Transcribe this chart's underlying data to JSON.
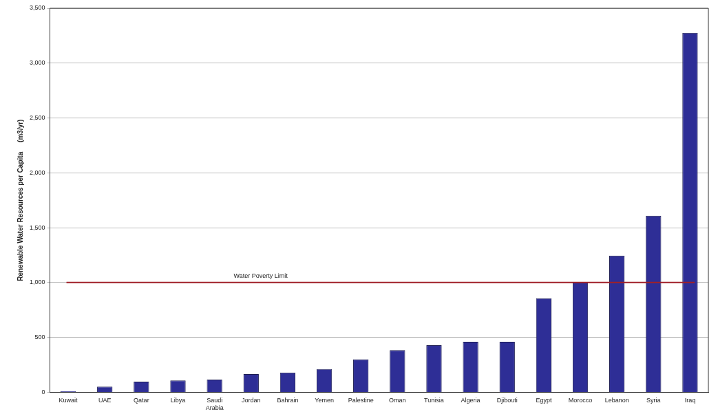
{
  "chart_data": {
    "type": "bar",
    "ylabel": "Renewable Water Resources per Capita     (m3/yr)",
    "categories": [
      "Kuwait",
      "UAE",
      "Qatar",
      "Libya",
      "Saudi Arabia",
      "Jordan",
      "Bahrain",
      "Yemen",
      "Palestine",
      "Oman",
      "Tunisia",
      "Algeria",
      "Djibouti",
      "Egypt",
      "Morocco",
      "Lebanon",
      "Syria",
      "Iraq"
    ],
    "values": [
      10,
      51,
      96,
      108,
      115,
      166,
      179,
      211,
      300,
      383,
      428,
      460,
      460,
      856,
      1000,
      1245,
      1609,
      3276
    ],
    "color": "#2e2e96",
    "ylim": [
      0,
      3500
    ],
    "yticks": [
      0,
      {
        "value": 500,
        "label": "500"
      },
      {
        "value": 1000,
        "label": "1,000"
      },
      {
        "value": 1500,
        "label": "1,500"
      },
      {
        "value": 2000,
        "label": "2,000"
      },
      {
        "value": 2500,
        "label": "2,500"
      },
      {
        "value": 3000,
        "label": "3,000"
      },
      {
        "value": 3500,
        "label": "3,500"
      }
    ],
    "grid": "y",
    "ref_lines": [
      {
        "axis": "y",
        "value": 1000,
        "label": "Water Poverty Limit",
        "color": "#a02028"
      }
    ]
  }
}
